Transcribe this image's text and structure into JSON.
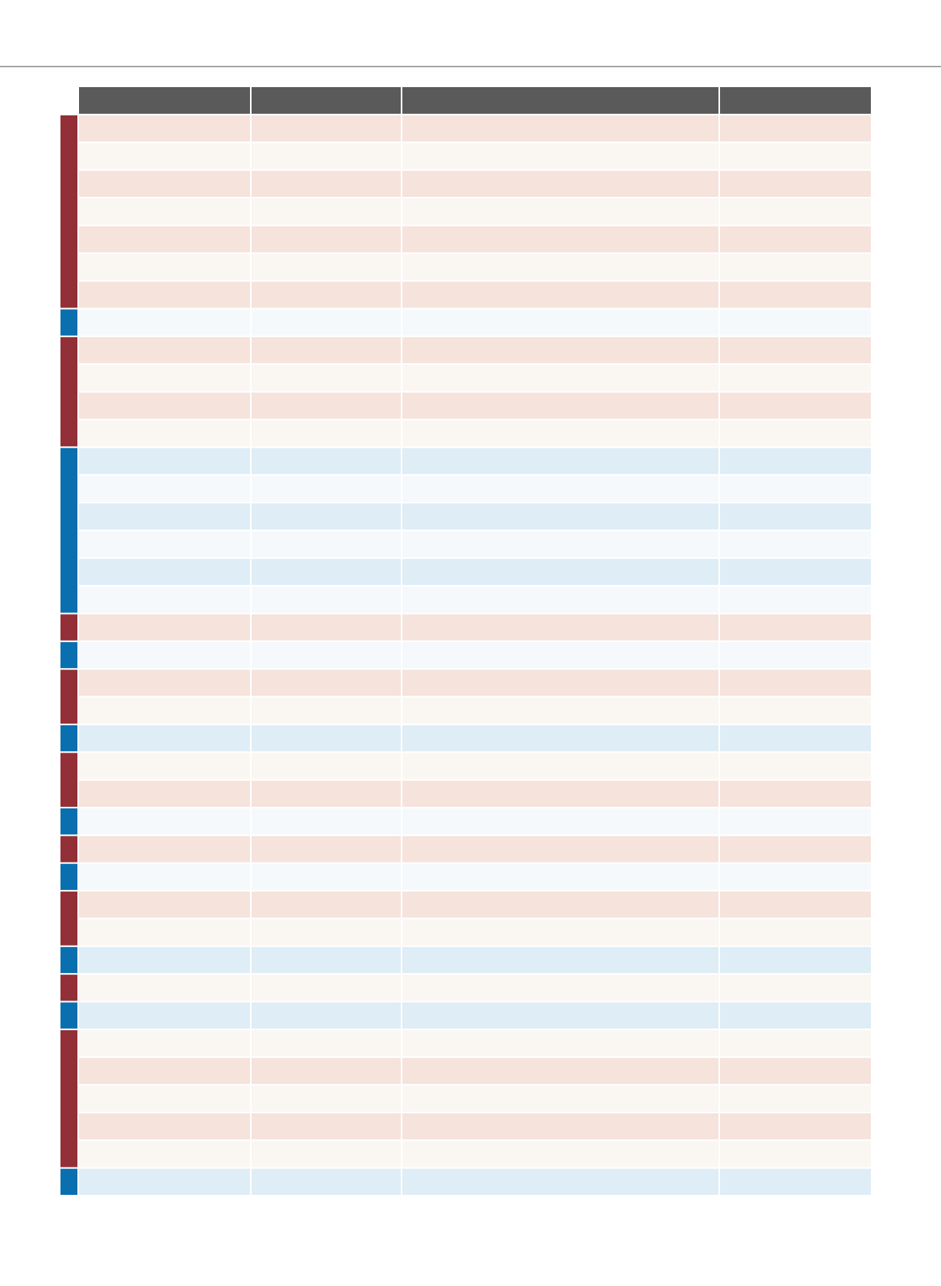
{
  "table": {
    "header_color": "#5a5a5a",
    "row_colors": {
      "#932f36": [
        "#f5e3dc",
        "#faf6f2"
      ],
      "#0a6fae": [
        "#deedf6",
        "#f5f9fc"
      ]
    },
    "groups": [
      {
        "color": "#932f36",
        "rows": 7
      },
      {
        "color": "#0a6fae",
        "rows": 1
      },
      {
        "color": "#932f36",
        "rows": 4
      },
      {
        "color": "#0a6fae",
        "rows": 6
      },
      {
        "color": "#932f36",
        "rows": 1
      },
      {
        "color": "#0a6fae",
        "rows": 1
      },
      {
        "color": "#932f36",
        "rows": 2
      },
      {
        "color": "#0a6fae",
        "rows": 1
      },
      {
        "color": "#932f36",
        "rows": 2
      },
      {
        "color": "#0a6fae",
        "rows": 1
      },
      {
        "color": "#932f36",
        "rows": 1
      },
      {
        "color": "#0a6fae",
        "rows": 1
      },
      {
        "color": "#932f36",
        "rows": 2
      },
      {
        "color": "#0a6fae",
        "rows": 1
      },
      {
        "color": "#932f36",
        "rows": 1
      },
      {
        "color": "#0a6fae",
        "rows": 1
      },
      {
        "color": "#932f36",
        "rows": 5
      },
      {
        "color": "#0a6fae",
        "rows": 1
      }
    ]
  }
}
